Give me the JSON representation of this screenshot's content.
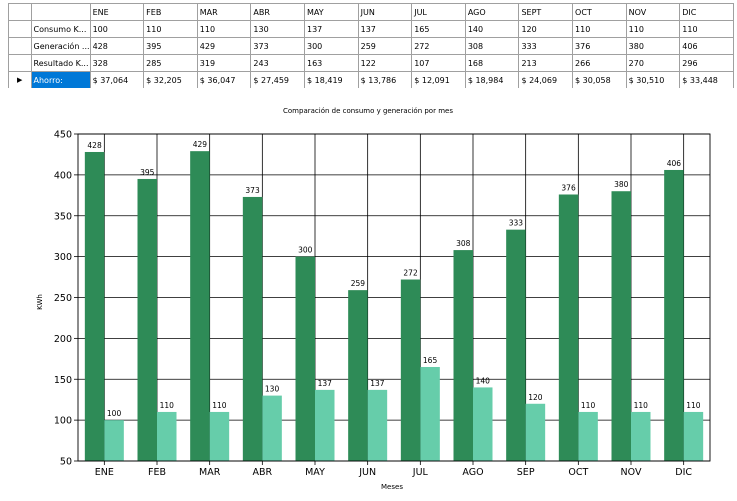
{
  "table": {
    "columns": [
      "ENE",
      "FEB",
      "MAR",
      "ABR",
      "MAY",
      "JUN",
      "JUL",
      "AGO",
      "SEPT",
      "OCT",
      "NOV",
      "DIC"
    ],
    "rows": [
      {
        "label": "Consumo K...",
        "values": [
          "100",
          "110",
          "110",
          "130",
          "137",
          "137",
          "165",
          "140",
          "120",
          "110",
          "110",
          "110"
        ]
      },
      {
        "label": "Generación ...",
        "values": [
          "428",
          "395",
          "429",
          "373",
          "300",
          "259",
          "272",
          "308",
          "333",
          "376",
          "380",
          "406"
        ]
      },
      {
        "label": "Resultado K...",
        "values": [
          "328",
          "285",
          "319",
          "243",
          "163",
          "122",
          "107",
          "168",
          "213",
          "266",
          "270",
          "296"
        ]
      },
      {
        "label": "Ahorro:",
        "values": [
          "$ 37,064",
          "$ 32,205",
          "$ 36,047",
          "$ 27,459",
          "$ 18,419",
          "$ 13,786",
          "$ 12,091",
          "$ 18,984",
          "$ 24,069",
          "$ 30,058",
          "$ 30,510",
          "$ 33,448"
        ],
        "selected": true,
        "marker": "▶"
      }
    ]
  },
  "chart_data": {
    "type": "bar",
    "title": "Comparación de consumo y generación por mes",
    "xlabel": "Meses",
    "ylabel": "KWh",
    "ylim": [
      50,
      450
    ],
    "yticks": [
      50,
      100,
      150,
      200,
      250,
      300,
      350,
      400,
      450
    ],
    "grid": true,
    "categories": [
      "ENE",
      "FEB",
      "MAR",
      "ABR",
      "MAY",
      "JUN",
      "JUL",
      "AGO",
      "SEP",
      "OCT",
      "NOV",
      "DIC"
    ],
    "series": [
      {
        "values": [
          428,
          395,
          429,
          373,
          300,
          259,
          272,
          308,
          333,
          376,
          380,
          406
        ],
        "color": "#2e8b57"
      },
      {
        "values": [
          100,
          110,
          110,
          130,
          137,
          137,
          165,
          140,
          120,
          110,
          110,
          110
        ],
        "color": "#66cdaa"
      }
    ]
  }
}
